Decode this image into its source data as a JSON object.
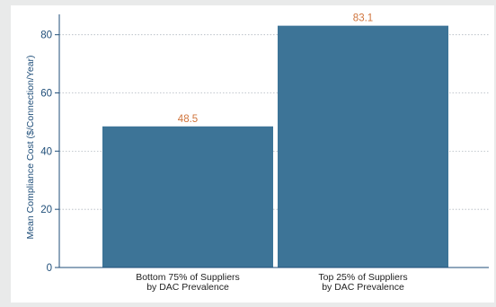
{
  "chart_data": {
    "type": "bar",
    "categories": [
      [
        "Bottom 75% of Suppliers",
        "by DAC Prevalence"
      ],
      [
        "Top 25% of Suppliers",
        "by DAC Prevalence"
      ]
    ],
    "values": [
      48.5,
      83.1
    ],
    "value_labels": [
      "48.5",
      "83.1"
    ],
    "ylabel": "Mean Compliance Cost ($/Connection/Year)",
    "xlabel": "",
    "ylim": [
      0,
      87
    ],
    "yticks": [
      0,
      20,
      40,
      60,
      80
    ],
    "grid": true,
    "colors": {
      "bar": "#3d7497",
      "value_label": "#d0743c",
      "axis": "#1f4e79",
      "grid": "#b0b8c0",
      "panel": "#ffffff",
      "outer": "#e9eaea"
    }
  }
}
